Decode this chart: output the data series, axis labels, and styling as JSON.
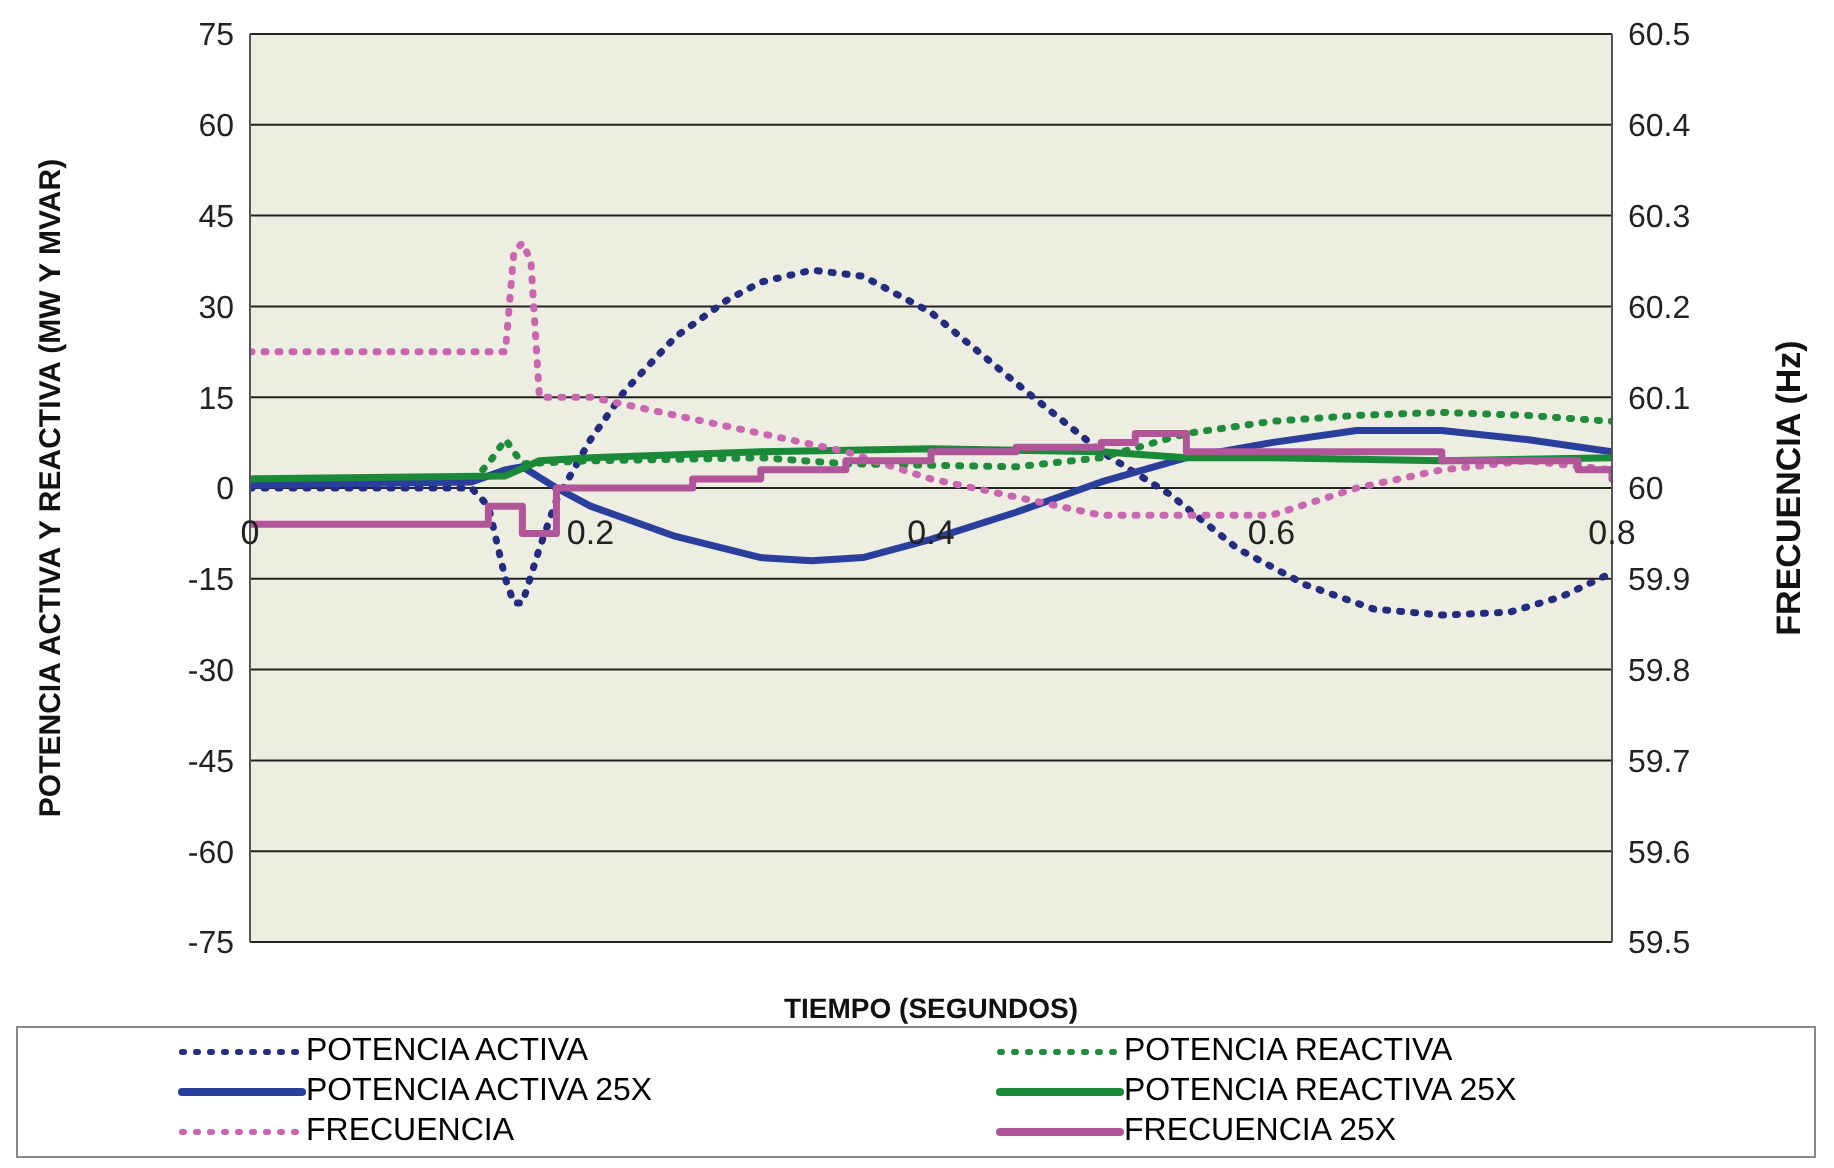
{
  "chart_data": {
    "type": "line",
    "xlabel": "TIEMPO (SEGUNDOS)",
    "ylabel": "POTENCIA ACTIVA Y REACTIVA (MW Y MVAR)",
    "y2label": "FRECUENCIA (Hz)",
    "xlim": [
      0,
      0.8
    ],
    "xticks": [
      0,
      0.2,
      0.4,
      0.6,
      0.8
    ],
    "ylim": [
      -75,
      75
    ],
    "yticks": [
      -75,
      -60,
      -45,
      -30,
      -15,
      0,
      15,
      30,
      45,
      60,
      75
    ],
    "y2lim": [
      59.5,
      60.5
    ],
    "y2ticks": [
      59.5,
      59.6,
      59.7,
      59.8,
      59.9,
      60,
      60.1,
      60.2,
      60.3,
      60.4,
      60.5
    ],
    "grid": "y",
    "legend": "bottom",
    "series": [
      {
        "name": "POTENCIA ACTIVA",
        "color": "#232c7e",
        "line_style": "dotted",
        "x": [
          0,
          0.05,
          0.1,
          0.13,
          0.14,
          0.15,
          0.155,
          0.16,
          0.17,
          0.18,
          0.2,
          0.22,
          0.25,
          0.28,
          0.3,
          0.33,
          0.36,
          0.4,
          0.43,
          0.46,
          0.5,
          0.54,
          0.58,
          0.62,
          0.66,
          0.7,
          0.74,
          0.77,
          0.8
        ],
        "values": [
          0,
          0,
          0,
          0,
          -3,
          -15,
          -19,
          -19,
          -10,
          -2,
          8,
          16,
          25,
          31,
          34,
          36,
          35,
          29,
          22,
          15,
          6,
          -1,
          -10,
          -16,
          -20,
          -21,
          -20.5,
          -18,
          -14
        ]
      },
      {
        "name": "POTENCIA REACTIVA",
        "color": "#1e8c3a",
        "line_style": "dotted",
        "x": [
          0,
          0.13,
          0.14,
          0.15,
          0.16,
          0.2,
          0.3,
          0.35,
          0.45,
          0.5,
          0.55,
          0.6,
          0.65,
          0.7,
          0.75,
          0.8
        ],
        "values": [
          1,
          1,
          4,
          8,
          4,
          4.5,
          5,
          4,
          3.5,
          5,
          9,
          11,
          12,
          12.5,
          12,
          11
        ]
      },
      {
        "name": "POTENCIA ACTIVA 25X",
        "color": "#2a3e9c",
        "line_style": "solid",
        "x": [
          0,
          0.13,
          0.15,
          0.16,
          0.18,
          0.2,
          0.25,
          0.3,
          0.33,
          0.36,
          0.4,
          0.45,
          0.5,
          0.55,
          0.6,
          0.65,
          0.7,
          0.75,
          0.8
        ],
        "values": [
          0.5,
          1,
          3,
          3.5,
          0,
          -3,
          -8,
          -11.5,
          -12,
          -11.5,
          -8.5,
          -4,
          1,
          5,
          7.5,
          9.5,
          9.5,
          8,
          6
        ]
      },
      {
        "name": "POTENCIA REACTIVA 25X",
        "color": "#1b8a38",
        "line_style": "solid",
        "x": [
          0,
          0.15,
          0.17,
          0.2,
          0.3,
          0.4,
          0.5,
          0.55,
          0.6,
          0.7,
          0.8
        ],
        "values": [
          1.5,
          2,
          4.5,
          5,
          6,
          6.5,
          6,
          5,
          5,
          4.5,
          5
        ]
      },
      {
        "name": "FRECUENCIA",
        "color": "#c867b0",
        "line_style": "dotted",
        "axis": "y2",
        "x": [
          0,
          0.15,
          0.155,
          0.16,
          0.165,
          0.17,
          0.2,
          0.25,
          0.3,
          0.35,
          0.4,
          0.45,
          0.5,
          0.55,
          0.6,
          0.65,
          0.7,
          0.75,
          0.8
        ],
        "values": [
          60.15,
          60.15,
          60.26,
          60.27,
          60.25,
          60.1,
          60.1,
          60.08,
          60.06,
          60.04,
          60.01,
          59.99,
          59.97,
          59.97,
          59.97,
          60,
          60.02,
          60.03,
          60.02
        ]
      },
      {
        "name": "FRECUENCIA 25X",
        "color": "#b0559a",
        "line_style": "solid",
        "type": "step",
        "axis": "y2",
        "x": [
          0,
          0.14,
          0.16,
          0.18,
          0.26,
          0.3,
          0.35,
          0.4,
          0.45,
          0.5,
          0.52,
          0.55,
          0.62,
          0.7,
          0.78,
          0.8
        ],
        "values": [
          59.96,
          59.98,
          59.95,
          60,
          60.01,
          60.02,
          60.03,
          60.04,
          60.045,
          60.05,
          60.06,
          60.04,
          60.04,
          60.03,
          60.02,
          60.01
        ]
      }
    ]
  }
}
